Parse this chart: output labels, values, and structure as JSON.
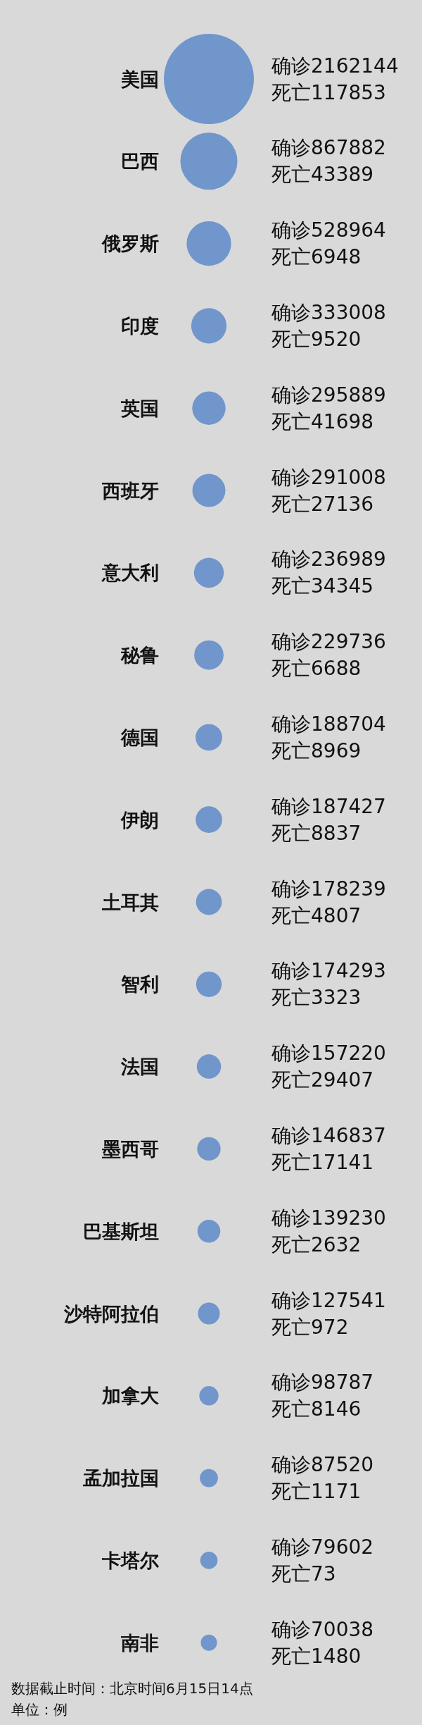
{
  "chart_data": {
    "type": "other",
    "categories": [
      "美国",
      "巴西",
      "俄罗斯",
      "印度",
      "英国",
      "西班牙",
      "意大利",
      "秘鲁",
      "德国",
      "伊朗",
      "土耳其",
      "智利",
      "法国",
      "墨西哥",
      "巴基斯坦",
      "沙特阿拉伯",
      "加拿大",
      "孟加拉国",
      "卡塔尔",
      "南非"
    ],
    "series": [
      {
        "color": "#7096cb",
        "values": [
          2162144,
          867882,
          528964,
          333008,
          295889,
          291008,
          236989,
          229736,
          188704,
          187427,
          178239,
          174293,
          157220,
          146837,
          139230,
          127541,
          98787,
          87520,
          79602,
          70038
        ],
        "value_labels": [
          "确诊2162144",
          "确诊867882",
          "确诊528964",
          "确诊333008",
          "确诊295889",
          "确诊291008",
          "确诊236989",
          "确诊229736",
          "确诊188704",
          "确诊187427",
          "确诊178239",
          "确诊174293",
          "确诊157220",
          "确诊146837",
          "确诊139230",
          "确诊127541",
          "确诊98787",
          "确诊87520",
          "确诊79602",
          "确诊70038"
        ]
      },
      {
        "values": [
          117853,
          43389,
          6948,
          9520,
          41698,
          27136,
          34345,
          6688,
          8969,
          8837,
          4807,
          3323,
          29407,
          17141,
          2632,
          972,
          8146,
          1171,
          73,
          1480
        ],
        "value_labels": [
          "死亡117853",
          "死亡43389",
          "死亡6948",
          "死亡9520",
          "死亡41698",
          "死亡27136",
          "死亡34345",
          "死亡6688",
          "死亡8969",
          "死亡8837",
          "死亡4807",
          "死亡3323",
          "死亡29407",
          "死亡17141",
          "死亡2632",
          "死亡972",
          "死亡8146",
          "死亡1171",
          "死亡73",
          "死亡1480"
        ]
      }
    ],
    "annotations": [
      "数据截止时间：北京时间6月15日14点",
      "单位：例"
    ]
  }
}
